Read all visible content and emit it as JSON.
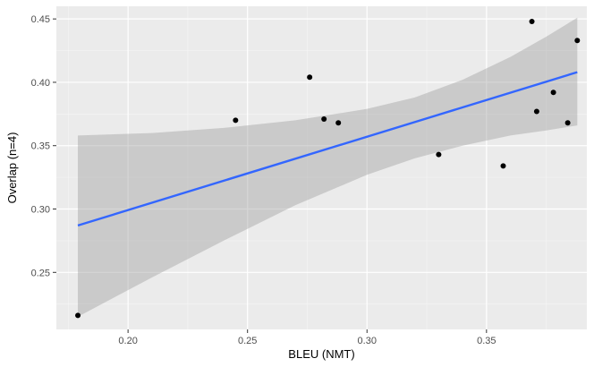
{
  "chart_data": {
    "type": "scatter",
    "xlabel": "BLEU (NMT)",
    "ylabel": "Overlap (n=4)",
    "xlim": [
      0.17,
      0.392
    ],
    "ylim": [
      0.205,
      0.46
    ],
    "x_ticks": [
      0.2,
      0.25,
      0.3,
      0.35
    ],
    "x_tick_labels": [
      "0.20",
      "0.25",
      "0.30",
      "0.35"
    ],
    "y_ticks": [
      0.25,
      0.3,
      0.35,
      0.4,
      0.45
    ],
    "y_tick_labels": [
      "0.25",
      "0.30",
      "0.35",
      "0.40",
      "0.45"
    ],
    "grid": true,
    "points": [
      {
        "x": 0.179,
        "y": 0.216
      },
      {
        "x": 0.245,
        "y": 0.37
      },
      {
        "x": 0.276,
        "y": 0.404
      },
      {
        "x": 0.282,
        "y": 0.371
      },
      {
        "x": 0.288,
        "y": 0.368
      },
      {
        "x": 0.33,
        "y": 0.343
      },
      {
        "x": 0.357,
        "y": 0.334
      },
      {
        "x": 0.369,
        "y": 0.448
      },
      {
        "x": 0.371,
        "y": 0.377
      },
      {
        "x": 0.378,
        "y": 0.392
      },
      {
        "x": 0.384,
        "y": 0.368
      },
      {
        "x": 0.388,
        "y": 0.433
      }
    ],
    "fit_line": {
      "method": "linear",
      "x": [
        0.179,
        0.388
      ],
      "y": [
        0.287,
        0.408
      ]
    },
    "confidence_band": [
      {
        "x": 0.179,
        "lower": 0.215,
        "upper": 0.358
      },
      {
        "x": 0.21,
        "lower": 0.246,
        "upper": 0.36
      },
      {
        "x": 0.24,
        "lower": 0.275,
        "upper": 0.364
      },
      {
        "x": 0.27,
        "lower": 0.303,
        "upper": 0.37
      },
      {
        "x": 0.3,
        "lower": 0.327,
        "upper": 0.379
      },
      {
        "x": 0.32,
        "lower": 0.34,
        "upper": 0.388
      },
      {
        "x": 0.34,
        "lower": 0.35,
        "upper": 0.402
      },
      {
        "x": 0.36,
        "lower": 0.358,
        "upper": 0.42
      },
      {
        "x": 0.375,
        "lower": 0.362,
        "upper": 0.436
      },
      {
        "x": 0.388,
        "lower": 0.366,
        "upper": 0.451
      }
    ],
    "colors": {
      "panel": "#ebebeb",
      "grid_major": "#ffffff",
      "grid_minor": "#f5f5f5",
      "points": "#000000",
      "line": "#3366ff",
      "band": "#999999"
    }
  }
}
